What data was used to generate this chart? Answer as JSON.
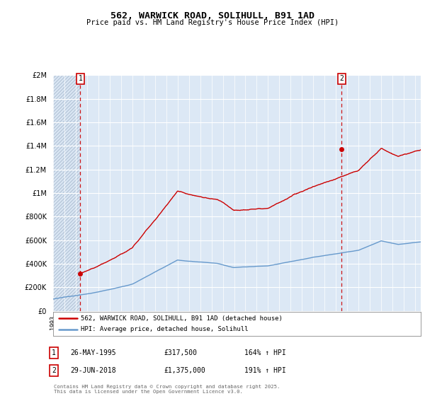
{
  "title": "562, WARWICK ROAD, SOLIHULL, B91 1AD",
  "subtitle": "Price paid vs. HM Land Registry's House Price Index (HPI)",
  "legend_line1": "562, WARWICK ROAD, SOLIHULL, B91 1AD (detached house)",
  "legend_line2": "HPI: Average price, detached house, Solihull",
  "annotation1_date": "26-MAY-1995",
  "annotation1_price": "£317,500",
  "annotation1_hpi": "164% ↑ HPI",
  "annotation2_date": "29-JUN-2018",
  "annotation2_price": "£1,375,000",
  "annotation2_hpi": "191% ↑ HPI",
  "footer": "Contains HM Land Registry data © Crown copyright and database right 2025.\nThis data is licensed under the Open Government Licence v3.0.",
  "ylim": [
    0,
    2000000
  ],
  "hpi_color": "#6699cc",
  "price_color": "#cc0000",
  "background_color": "#dce8f5",
  "hatch_color": "#b8c8da",
  "grid_color": "#ffffff",
  "x_start_year": 1993,
  "x_end_year": 2025,
  "sale1_year": 1995.4,
  "sale1_value": 317500,
  "sale2_year": 2018.5,
  "sale2_value": 1375000
}
